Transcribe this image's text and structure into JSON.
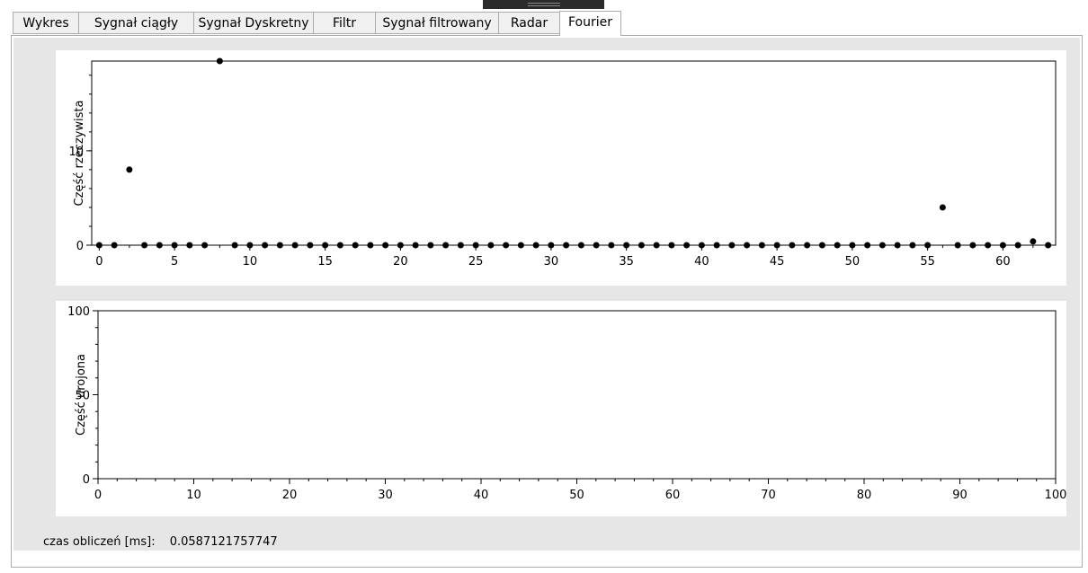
{
  "tabs": [
    {
      "label": "Wykres"
    },
    {
      "label": "Sygnał ciągły"
    },
    {
      "label": "Sygnał Dyskretny"
    },
    {
      "label": "Filtr"
    },
    {
      "label": "Sygnał filtrowany"
    },
    {
      "label": "Radar"
    },
    {
      "label": "Fourier"
    }
  ],
  "active_tab": "Fourier",
  "status": {
    "label": "czas obliczeń [ms]:",
    "value": "0.0587121757747"
  },
  "chart_data": [
    {
      "type": "scatter",
      "ylabel": "Część rzeczywista",
      "xlim": [
        -0.5,
        63.5
      ],
      "ylim": [
        0,
        19.5
      ],
      "x_ticks": [
        0,
        5,
        10,
        15,
        20,
        25,
        30,
        35,
        40,
        45,
        50,
        55,
        60
      ],
      "y_ticks": [
        0,
        10
      ],
      "marker_color": "#000000",
      "x": [
        0,
        1,
        2,
        3,
        4,
        5,
        6,
        7,
        8,
        9,
        10,
        11,
        12,
        13,
        14,
        15,
        16,
        17,
        18,
        19,
        20,
        21,
        22,
        23,
        24,
        25,
        26,
        27,
        28,
        29,
        30,
        31,
        32,
        33,
        34,
        35,
        36,
        37,
        38,
        39,
        40,
        41,
        42,
        43,
        44,
        45,
        46,
        47,
        48,
        49,
        50,
        51,
        52,
        53,
        54,
        55,
        56,
        57,
        58,
        59,
        60,
        61,
        62,
        63
      ],
      "y": [
        0,
        0,
        8,
        0,
        0,
        0,
        0,
        0,
        19.5,
        0,
        0,
        0,
        0,
        0,
        0,
        0,
        0,
        0,
        0,
        0,
        0,
        0,
        0,
        0,
        0,
        0,
        0,
        0,
        0,
        0,
        0,
        0,
        0,
        0,
        0,
        0,
        0,
        0,
        0,
        0,
        0,
        0,
        0,
        0,
        0,
        0,
        0,
        0,
        0,
        0,
        0,
        0,
        0,
        0,
        0,
        0,
        4,
        0,
        0,
        0,
        0,
        0,
        0.4,
        0
      ]
    },
    {
      "type": "scatter",
      "ylabel": "Część urojona",
      "xlim": [
        0,
        100
      ],
      "ylim": [
        0,
        100
      ],
      "x_ticks": [
        0,
        10,
        20,
        30,
        40,
        50,
        60,
        70,
        80,
        90,
        100
      ],
      "y_ticks": [
        0,
        50,
        100
      ],
      "x": [],
      "y": []
    }
  ]
}
